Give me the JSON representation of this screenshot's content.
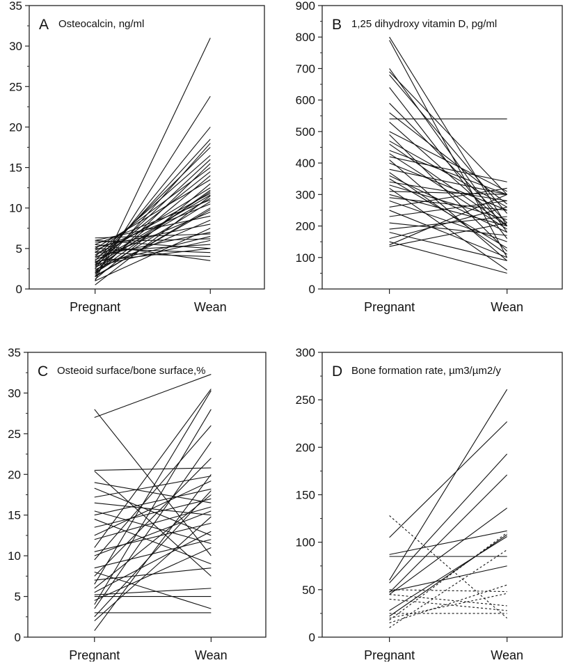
{
  "chart_data": [
    {
      "panel": "A",
      "title": "Osteocalcin, ng/ml",
      "type": "line",
      "categories": [
        "Pregnant",
        "Wean"
      ],
      "ylim": [
        0,
        35
      ],
      "yticks": [
        "0",
        "5",
        "10",
        "15",
        "20",
        "25",
        "30",
        "35"
      ],
      "grid": false,
      "lines": [
        {
          "values": [
            1.0,
            31.0
          ]
        },
        {
          "values": [
            1.5,
            23.8
          ]
        },
        {
          "values": [
            2.5,
            20.0
          ]
        },
        {
          "values": [
            3.0,
            18.5
          ]
        },
        {
          "values": [
            2.0,
            18.0
          ]
        },
        {
          "values": [
            3.5,
            17.5
          ]
        },
        {
          "values": [
            4.0,
            16.5
          ]
        },
        {
          "values": [
            2.8,
            16.0
          ]
        },
        {
          "values": [
            1.8,
            15.5
          ]
        },
        {
          "values": [
            4.5,
            15.0
          ]
        },
        {
          "values": [
            3.2,
            14.5
          ]
        },
        {
          "values": [
            2.2,
            14.0
          ]
        },
        {
          "values": [
            5.0,
            13.5
          ]
        },
        {
          "values": [
            1.2,
            13.0
          ]
        },
        {
          "values": [
            3.8,
            12.5
          ]
        },
        {
          "values": [
            2.6,
            12.0
          ]
        },
        {
          "values": [
            4.2,
            11.8
          ]
        },
        {
          "values": [
            0.5,
            11.5
          ]
        },
        {
          "values": [
            3.0,
            11.2
          ]
        },
        {
          "values": [
            5.5,
            11.0
          ]
        },
        {
          "values": [
            2.0,
            10.8
          ]
        },
        {
          "values": [
            4.8,
            10.5
          ]
        },
        {
          "values": [
            1.5,
            10.0
          ]
        },
        {
          "values": [
            3.6,
            9.5
          ]
        },
        {
          "values": [
            6.0,
            9.0
          ]
        },
        {
          "values": [
            2.4,
            8.5
          ]
        },
        {
          "values": [
            5.2,
            8.0
          ]
        },
        {
          "values": [
            1.0,
            7.5
          ]
        },
        {
          "values": [
            4.0,
            7.0
          ]
        },
        {
          "values": [
            6.3,
            6.8
          ]
        },
        {
          "values": [
            3.0,
            6.5
          ]
        },
        {
          "values": [
            5.8,
            6.2
          ]
        },
        {
          "values": [
            2.8,
            6.0
          ]
        },
        {
          "values": [
            4.6,
            5.5
          ]
        },
        {
          "values": [
            6.0,
            5.0
          ]
        },
        {
          "values": [
            3.4,
            5.0
          ]
        },
        {
          "values": [
            5.0,
            4.5
          ]
        },
        {
          "values": [
            4.5,
            4.0
          ]
        },
        {
          "values": [
            5.5,
            3.5
          ]
        },
        {
          "values": [
            2.0,
            12.2
          ]
        },
        {
          "values": [
            3.3,
            11.6
          ]
        },
        {
          "values": [
            1.6,
            9.8
          ]
        }
      ]
    },
    {
      "panel": "B",
      "title": "1,25 dihydroxy vitamin D, pg/ml",
      "type": "line",
      "categories": [
        "Pregnant",
        "Wean"
      ],
      "ylim": [
        0,
        900
      ],
      "yticks": [
        "0",
        "100",
        "200",
        "300",
        "400",
        "500",
        "600",
        "700",
        "800",
        "900"
      ],
      "grid": false,
      "lines": [
        {
          "values": [
            800,
            200
          ]
        },
        {
          "values": [
            790,
            100
          ]
        },
        {
          "values": [
            700,
            180
          ]
        },
        {
          "values": [
            690,
            300
          ]
        },
        {
          "values": [
            680,
            240
          ]
        },
        {
          "values": [
            640,
            160
          ]
        },
        {
          "values": [
            590,
            210
          ]
        },
        {
          "values": [
            560,
            270
          ]
        },
        {
          "values": [
            540,
            540
          ]
        },
        {
          "values": [
            530,
            200
          ]
        },
        {
          "values": [
            500,
            310
          ]
        },
        {
          "values": [
            490,
            120
          ]
        },
        {
          "values": [
            470,
            260
          ]
        },
        {
          "values": [
            440,
            300
          ]
        },
        {
          "values": [
            430,
            190
          ]
        },
        {
          "values": [
            420,
            340
          ]
        },
        {
          "values": [
            410,
            90
          ]
        },
        {
          "values": [
            400,
            250
          ]
        },
        {
          "values": [
            380,
            300
          ]
        },
        {
          "values": [
            360,
            180
          ]
        },
        {
          "values": [
            350,
            130
          ]
        },
        {
          "values": [
            340,
            280
          ]
        },
        {
          "values": [
            330,
            220
          ]
        },
        {
          "values": [
            320,
            60
          ]
        },
        {
          "values": [
            310,
            300
          ]
        },
        {
          "values": [
            300,
            200
          ]
        },
        {
          "values": [
            290,
            250
          ]
        },
        {
          "values": [
            280,
            150
          ]
        },
        {
          "values": [
            260,
            320
          ]
        },
        {
          "values": [
            250,
            100
          ]
        },
        {
          "values": [
            230,
            280
          ]
        },
        {
          "values": [
            210,
            170
          ]
        },
        {
          "values": [
            190,
            230
          ]
        },
        {
          "values": [
            180,
            90
          ]
        },
        {
          "values": [
            160,
            260
          ]
        },
        {
          "values": [
            150,
            50
          ]
        },
        {
          "values": [
            140,
            300
          ]
        },
        {
          "values": [
            135,
            210
          ]
        },
        {
          "values": [
            460,
            200
          ]
        },
        {
          "values": [
            370,
            110
          ]
        }
      ]
    },
    {
      "panel": "C",
      "title": "Osteoid surface/bone surface,%",
      "type": "line",
      "categories": [
        "Pregnant",
        "Wean"
      ],
      "ylim": [
        0,
        35
      ],
      "yticks": [
        "0",
        "5",
        "10",
        "15",
        "20",
        "25",
        "30",
        "35"
      ],
      "grid": false,
      "lines": [
        {
          "values": [
            27.0,
            32.3
          ]
        },
        {
          "values": [
            28.0,
            10.0
          ]
        },
        {
          "values": [
            20.5,
            20.8
          ]
        },
        {
          "values": [
            20.4,
            7.5
          ]
        },
        {
          "values": [
            17.2,
            19.8
          ]
        },
        {
          "values": [
            18.3,
            12.5
          ]
        },
        {
          "values": [
            15.0,
            18.2
          ]
        },
        {
          "values": [
            16.5,
            15.0
          ]
        },
        {
          "values": [
            13.5,
            17.0
          ]
        },
        {
          "values": [
            14.5,
            9.0
          ]
        },
        {
          "values": [
            12.0,
            16.0
          ]
        },
        {
          "values": [
            11.0,
            30.5
          ]
        },
        {
          "values": [
            10.5,
            14.0
          ]
        },
        {
          "values": [
            9.5,
            26.0
          ]
        },
        {
          "values": [
            8.5,
            12.0
          ]
        },
        {
          "values": [
            7.5,
            22.0
          ]
        },
        {
          "values": [
            7.0,
            8.5
          ]
        },
        {
          "values": [
            6.5,
            30.3
          ]
        },
        {
          "values": [
            6.0,
            17.5
          ]
        },
        {
          "values": [
            5.5,
            13.0
          ]
        },
        {
          "values": [
            5.0,
            5.0
          ]
        },
        {
          "values": [
            4.5,
            11.0
          ]
        },
        {
          "values": [
            4.0,
            28.0
          ]
        },
        {
          "values": [
            3.5,
            24.0
          ]
        },
        {
          "values": [
            3.0,
            3.0
          ]
        },
        {
          "values": [
            2.5,
            18.0
          ]
        },
        {
          "values": [
            0.8,
            20.0
          ]
        },
        {
          "values": [
            19.0,
            16.5
          ]
        },
        {
          "values": [
            15.5,
            11.5
          ]
        },
        {
          "values": [
            8.0,
            3.5
          ]
        },
        {
          "values": [
            12.5,
            19.2
          ]
        },
        {
          "values": [
            10.0,
            15.5
          ]
        },
        {
          "values": [
            2.0,
            14.8
          ]
        },
        {
          "values": [
            5.2,
            6.0
          ]
        }
      ]
    },
    {
      "panel": "D",
      "title": "Bone formation rate, µm3/µm2/y",
      "type": "line",
      "categories": [
        "Pregnant",
        "Wean"
      ],
      "ylim": [
        0,
        300
      ],
      "yticks": [
        "0",
        "50",
        "100",
        "150",
        "200",
        "250",
        "300"
      ],
      "grid": false,
      "lines": [
        {
          "values": [
            105,
            227
          ],
          "dashed": false
        },
        {
          "values": [
            60,
            261
          ],
          "dashed": false
        },
        {
          "values": [
            57,
            193
          ],
          "dashed": false
        },
        {
          "values": [
            47,
            171
          ],
          "dashed": false
        },
        {
          "values": [
            45,
            136
          ],
          "dashed": false
        },
        {
          "values": [
            87,
            112
          ],
          "dashed": false
        },
        {
          "values": [
            85,
            85
          ],
          "dashed": false
        },
        {
          "values": [
            48,
            75
          ],
          "dashed": false
        },
        {
          "values": [
            28,
            106
          ],
          "dashed": false
        },
        {
          "values": [
            22,
            108
          ],
          "dashed": false
        },
        {
          "values": [
            128,
            20
          ],
          "dashed": true
        },
        {
          "values": [
            10,
            92
          ],
          "dashed": true
        },
        {
          "values": [
            15,
            55
          ],
          "dashed": true
        },
        {
          "values": [
            50,
            48
          ],
          "dashed": true
        },
        {
          "values": [
            45,
            33
          ],
          "dashed": true
        },
        {
          "values": [
            40,
            28
          ],
          "dashed": true
        },
        {
          "values": [
            25,
            25
          ],
          "dashed": true
        },
        {
          "values": [
            20,
            46
          ],
          "dashed": true
        },
        {
          "values": [
            18,
            110
          ],
          "dashed": true
        }
      ]
    }
  ]
}
